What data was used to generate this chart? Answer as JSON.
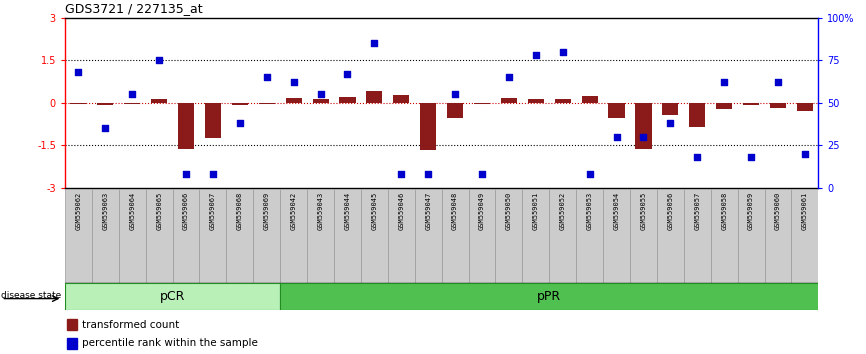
{
  "title": "GDS3721 / 227135_at",
  "samples": [
    "GSM559062",
    "GSM559063",
    "GSM559064",
    "GSM559065",
    "GSM559066",
    "GSM559067",
    "GSM559068",
    "GSM559069",
    "GSM559042",
    "GSM559043",
    "GSM559044",
    "GSM559045",
    "GSM559046",
    "GSM559047",
    "GSM559048",
    "GSM559049",
    "GSM559050",
    "GSM559051",
    "GSM559052",
    "GSM559053",
    "GSM559054",
    "GSM559055",
    "GSM559056",
    "GSM559057",
    "GSM559058",
    "GSM559059",
    "GSM559060",
    "GSM559061"
  ],
  "transformed_count": [
    -0.05,
    -0.08,
    -0.05,
    0.12,
    -1.65,
    -1.25,
    -0.1,
    -0.05,
    0.18,
    0.12,
    0.2,
    0.42,
    0.28,
    -1.68,
    -0.55,
    -0.05,
    0.15,
    0.12,
    0.12,
    0.22,
    -0.55,
    -1.62,
    -0.42,
    -0.85,
    -0.22,
    -0.1,
    -0.18,
    -0.28
  ],
  "percentile_rank": [
    68,
    35,
    55,
    75,
    8,
    8,
    38,
    65,
    62,
    55,
    67,
    85,
    8,
    8,
    55,
    8,
    65,
    78,
    80,
    8,
    30,
    30,
    38,
    18,
    62,
    18,
    62,
    20
  ],
  "pcr_count": 8,
  "ppr_count": 20,
  "ylim_left": [
    -3,
    3
  ],
  "ylim_right": [
    0,
    100
  ],
  "yticks_left": [
    -3,
    -1.5,
    0,
    1.5,
    3
  ],
  "yticks_right": [
    0,
    25,
    50,
    75,
    100
  ],
  "ytick_labels_left": [
    "-3",
    "-1.5",
    "0",
    "1.5",
    "3"
  ],
  "ytick_labels_right": [
    "0",
    "25",
    "50",
    "75",
    "100%"
  ],
  "bar_color": "#8B1A1A",
  "dot_color": "#0000CC",
  "pcr_color": "#B8F0B8",
  "ppr_color": "#50C050",
  "label_bar": "transformed count",
  "label_dot": "percentile rank within the sample",
  "disease_state_label": "disease state",
  "pcr_label": "pCR",
  "ppr_label": "pPR",
  "dotted_line_color": "#000000",
  "zero_line_color": "#CC0000"
}
